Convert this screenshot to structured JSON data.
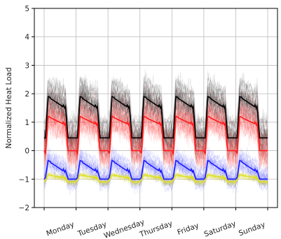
{
  "chart_data": {
    "type": "line",
    "title": "",
    "xlabel": "",
    "ylabel": "Normalized Heat Load",
    "ylim": [
      -2,
      5
    ],
    "yticks": [
      -2,
      -1,
      0,
      1,
      2,
      3,
      4,
      5
    ],
    "ytick_labels": [
      "−2",
      "−1",
      "0",
      "1",
      "2",
      "3",
      "4",
      "5"
    ],
    "categories": [
      "Monday",
      "Tuesday",
      "Wednesday",
      "Thursday",
      "Friday",
      "Saturday",
      "Sunday"
    ],
    "grid": true,
    "legend": "none",
    "hours_per_day": 24,
    "mean_profiles": [
      {
        "color": "#000000",
        "day_start": 0.45,
        "day_peak": 1.9,
        "day_plateau": 1.55,
        "night": 0.45
      },
      {
        "color": "#ff1a1a",
        "day_start": -0.1,
        "day_peak": 1.2,
        "day_plateau": 0.95,
        "night": 0.0
      },
      {
        "color": "#1a1aff",
        "day_start": -0.95,
        "day_peak": -0.35,
        "day_plateau": -0.7,
        "night": -1.0
      },
      {
        "color": "#e0e020",
        "day_start": -1.0,
        "day_peak": -0.85,
        "day_plateau": -0.95,
        "night": -1.1
      }
    ],
    "colors": {
      "black_band": "#000000",
      "red_band": "#ff3333",
      "blue_band": "#4a4aff",
      "yellow_band": "#d4d41a",
      "grid": "#bbbbbb"
    }
  }
}
